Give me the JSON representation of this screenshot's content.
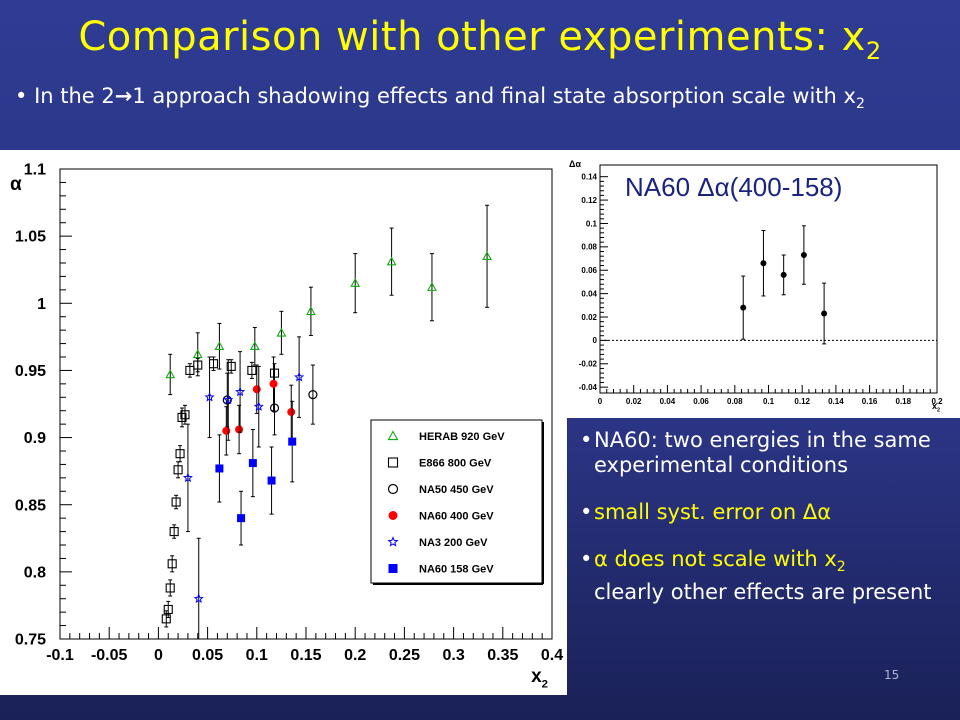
{
  "slide": {
    "title": "Comparison with other experiments: x",
    "title_sub": "2",
    "intro_a": "In the 2",
    "intro_b": "1 approach shadowing effects and final state absorption scale with x",
    "intro_sub": "2",
    "notes": [
      {
        "text": "NA60: two energies in the same experimental conditions"
      },
      {
        "text": "small syst. error on Δα"
      },
      {
        "text_a": "α does not scale with x",
        "sub": "2",
        "text_b": "clearly other effects are present"
      }
    ],
    "page_number": "15"
  },
  "chart_data": [
    {
      "type": "scatter",
      "ylabel": "α",
      "xlabel": "x",
      "xlabel_sub": "2",
      "xlim": [
        -0.1,
        0.4
      ],
      "ylim": [
        0.75,
        1.1
      ],
      "xticks": [
        "-0.1",
        "-0.05",
        "0",
        "0.05",
        "0.1",
        "0.15",
        "0.2",
        "0.25",
        "0.3",
        "0.35",
        "0.4"
      ],
      "yticks": [
        "0.75",
        "0.8",
        "0.85",
        "0.9",
        "0.95",
        "1",
        "1.05",
        "1.1"
      ],
      "legend_position": "bottom-right",
      "series": [
        {
          "name": "HERAB 920 GeV",
          "marker": "triangle-open",
          "color": "#11aa11",
          "points": [
            [
              0.012,
              0.947,
              0.015
            ],
            [
              0.04,
              0.962,
              0.016
            ],
            [
              0.062,
              0.968,
              0.017
            ],
            [
              0.098,
              0.968,
              0.014
            ],
            [
              0.125,
              0.978,
              0.016
            ],
            [
              0.155,
              0.994,
              0.018
            ],
            [
              0.2,
              1.015,
              0.022
            ],
            [
              0.237,
              1.031,
              0.025
            ],
            [
              0.278,
              1.012,
              0.025
            ],
            [
              0.334,
              1.035,
              0.038
            ]
          ]
        },
        {
          "name": "E866 800 GeV",
          "marker": "square-open",
          "color": "#000000",
          "points": [
            [
              0.008,
              0.765,
              0.006
            ],
            [
              0.01,
              0.772,
              0.006
            ],
            [
              0.012,
              0.788,
              0.006
            ],
            [
              0.014,
              0.806,
              0.006
            ],
            [
              0.016,
              0.83,
              0.005
            ],
            [
              0.018,
              0.852,
              0.005
            ],
            [
              0.02,
              0.876,
              0.006
            ],
            [
              0.022,
              0.888,
              0.006
            ],
            [
              0.024,
              0.915,
              0.007
            ],
            [
              0.027,
              0.917,
              0.007
            ],
            [
              0.032,
              0.95,
              0.005
            ],
            [
              0.04,
              0.954,
              0.005
            ],
            [
              0.056,
              0.955,
              0.005
            ],
            [
              0.074,
              0.953,
              0.005
            ],
            [
              0.095,
              0.95,
              0.006
            ],
            [
              0.118,
              0.948,
              0.007
            ]
          ]
        },
        {
          "name": "NA50 450 GeV",
          "marker": "circle-open",
          "color": "#000000",
          "points": [
            [
              0.07,
              0.928,
              0.02
            ],
            [
              0.118,
              0.922,
              0.02
            ],
            [
              0.157,
              0.932,
              0.022
            ]
          ]
        },
        {
          "name": "NA60 400 GeV",
          "marker": "circle-filled",
          "color": "#ff0000",
          "points": [
            [
              0.069,
              0.905,
              0.018
            ],
            [
              0.082,
              0.906,
              0.018
            ],
            [
              0.1,
              0.936,
              0.018
            ],
            [
              0.117,
              0.94,
              0.02
            ],
            [
              0.135,
              0.919,
              0.02
            ]
          ]
        },
        {
          "name": "NA3 200 GeV",
          "marker": "star-open",
          "color": "#0000ff",
          "points": [
            [
              0.03,
              0.87,
              0.04
            ],
            [
              0.052,
              0.93,
              0.03
            ],
            [
              0.071,
              0.928,
              0.03
            ],
            [
              0.083,
              0.934,
              0.03
            ],
            [
              0.102,
              0.923,
              0.03
            ],
            [
              0.143,
              0.945,
              0.03
            ],
            [
              0.041,
              0.78,
              0.045
            ]
          ]
        },
        {
          "name": "NA60 158 GeV",
          "marker": "square-filled",
          "color": "#0000ff",
          "points": [
            [
              0.062,
              0.877,
              0.025
            ],
            [
              0.084,
              0.84,
              0.02
            ],
            [
              0.096,
              0.881,
              0.025
            ],
            [
              0.115,
              0.868,
              0.025
            ],
            [
              0.136,
              0.897,
              0.03
            ]
          ]
        }
      ]
    },
    {
      "type": "scatter",
      "title": "NA60 Δα(400-158)",
      "ylabel": "Δα",
      "xlabel": "x",
      "xlabel_sub": "2",
      "xlim": [
        0,
        0.2
      ],
      "ylim": [
        -0.045,
        0.15
      ],
      "xticks": [
        "0",
        "0.02",
        "0.04",
        "0.06",
        "0.08",
        "0.1",
        "0.12",
        "0.14",
        "0.16",
        "0.18",
        "0.2"
      ],
      "yticks": [
        "-0.04",
        "-0.02",
        "0",
        "0.02",
        "0.04",
        "0.06",
        "0.08",
        "0.1",
        "0.12",
        "0.14"
      ],
      "reference_line": 0,
      "series": [
        {
          "marker": "circle-filled",
          "color": "#000000",
          "points": [
            [
              0.085,
              0.028,
              0.027
            ],
            [
              0.097,
              0.066,
              0.028
            ],
            [
              0.109,
              0.056,
              0.017
            ],
            [
              0.121,
              0.073,
              0.025
            ],
            [
              0.133,
              0.023,
              0.026
            ]
          ]
        }
      ]
    }
  ]
}
